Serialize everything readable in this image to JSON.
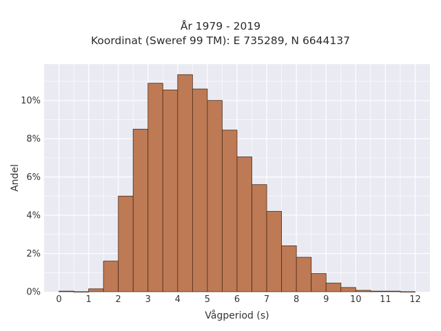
{
  "chart_data": {
    "type": "bar",
    "title": "År 1979 - 2019",
    "subtitle": "Koordinat (Sweref 99 TM): E 735289, N 6644137",
    "xlabel": "Vågperiod (s)",
    "ylabel": "Andel",
    "xlim": [
      -0.5,
      12.5
    ],
    "ylim": [
      0,
      11.9
    ],
    "x_ticks": [
      "0",
      "1",
      "2",
      "3",
      "4",
      "5",
      "6",
      "7",
      "8",
      "9",
      "10",
      "11",
      "12"
    ],
    "y_ticks": [
      "0%",
      "2%",
      "4%",
      "6%",
      "8%",
      "10%"
    ],
    "bin_width": 0.5,
    "bins": [
      {
        "start": 0.0,
        "value": 0.03
      },
      {
        "start": 0.5,
        "value": 0.0
      },
      {
        "start": 1.0,
        "value": 0.15
      },
      {
        "start": 1.5,
        "value": 1.6
      },
      {
        "start": 2.0,
        "value": 5.0
      },
      {
        "start": 2.5,
        "value": 8.5
      },
      {
        "start": 3.0,
        "value": 10.9
      },
      {
        "start": 3.5,
        "value": 10.55
      },
      {
        "start": 4.0,
        "value": 11.35
      },
      {
        "start": 4.5,
        "value": 10.6
      },
      {
        "start": 5.0,
        "value": 10.0
      },
      {
        "start": 5.5,
        "value": 8.45
      },
      {
        "start": 6.0,
        "value": 7.05
      },
      {
        "start": 6.5,
        "value": 5.6
      },
      {
        "start": 7.0,
        "value": 4.2
      },
      {
        "start": 7.5,
        "value": 2.4
      },
      {
        "start": 8.0,
        "value": 1.8
      },
      {
        "start": 8.5,
        "value": 0.95
      },
      {
        "start": 9.0,
        "value": 0.45
      },
      {
        "start": 9.5,
        "value": 0.22
      },
      {
        "start": 10.0,
        "value": 0.07
      },
      {
        "start": 10.5,
        "value": 0.03
      },
      {
        "start": 11.0,
        "value": 0.03
      },
      {
        "start": 11.5,
        "value": 0.0
      }
    ],
    "grid": true,
    "colors": {
      "bar_fill": "#bd7a55",
      "bar_edge": "#4a2a1a",
      "plot_bg": "#eaeaf2",
      "grid": "#ffffff"
    }
  }
}
